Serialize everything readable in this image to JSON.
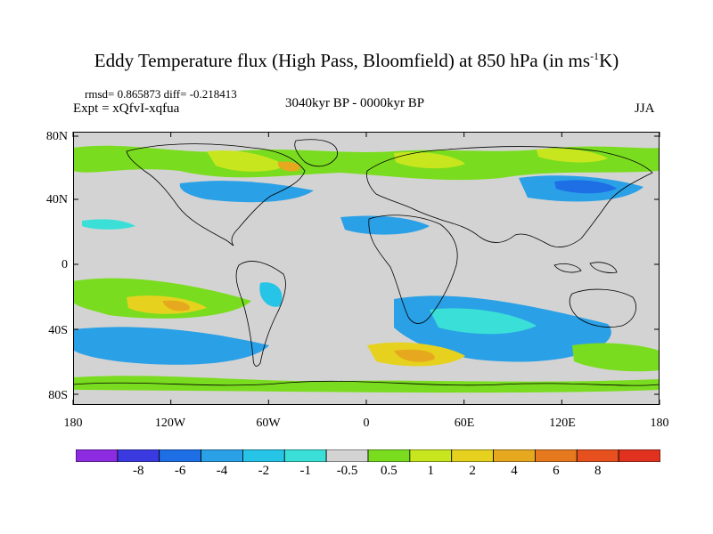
{
  "title": {
    "main": "Eddy Temperature flux (High Pass, Bloomfield) at 850 hPa (in ms",
    "sup": "-1",
    "end": "K)"
  },
  "stats": {
    "rmsd_diff": "rmsd= 0.865873 diff= -0.218413",
    "expt": "Expt = xQfvI-xqfua",
    "period": "3040kyr BP - 0000kyr BP",
    "season": "JJA"
  },
  "map": {
    "lat_labels": [
      "80N",
      "40N",
      "0",
      "40S",
      "80S"
    ],
    "lon_labels": [
      "180",
      "120W",
      "60W",
      "0",
      "60E",
      "120E",
      "180"
    ],
    "background_color": "#d3d3d3"
  },
  "colorbar": {
    "colors": [
      "#8c2be0",
      "#3a3ae0",
      "#1e6ee6",
      "#2aa0e6",
      "#26c4e6",
      "#3ae0d8",
      "#d3d3d3",
      "#7adc1e",
      "#c8e61e",
      "#e6d21e",
      "#e6a81e",
      "#e6781e",
      "#e6501e",
      "#e0321e"
    ],
    "labels": [
      "-8",
      "-6",
      "-4",
      "-2",
      "-1",
      "-0.5",
      "0.5",
      "1",
      "2",
      "4",
      "6",
      "8"
    ]
  }
}
